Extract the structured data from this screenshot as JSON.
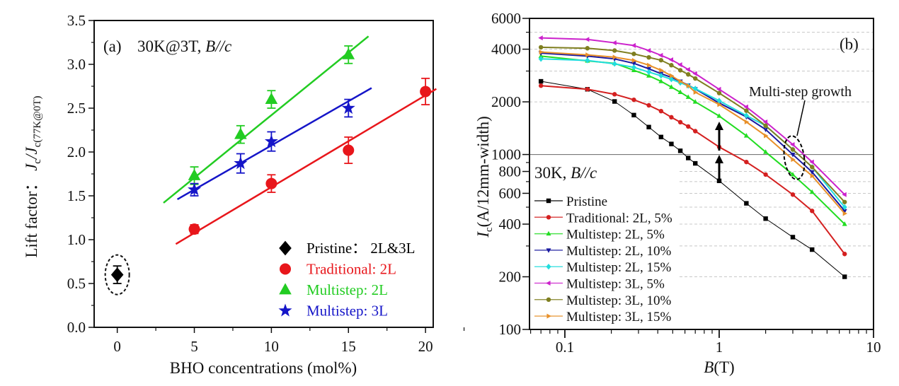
{
  "chart_data": [
    {
      "type": "scatter",
      "panel_label": "(a)",
      "annotation": "30K@3T, ",
      "annotation_italic": "B//c",
      "xlabel": "BHO concentrations (mol%)",
      "ylabel_prefix": "Lift factor：  ",
      "ylabel_main": "J",
      "ylabel_sub1": "c",
      "ylabel_mid": "/J",
      "ylabel_sub2": "c(77K@0T)",
      "xlim": [
        -1.5,
        20.5
      ],
      "ylim": [
        0,
        3.5
      ],
      "xticks": [
        "0",
        "5",
        "10",
        "15",
        "20"
      ],
      "xtick_values": [
        0,
        5,
        10,
        15,
        20
      ],
      "yticks": [
        "0.0",
        "0.5",
        "1.0",
        "1.5",
        "2.0",
        "2.5",
        "3.0",
        "3.5"
      ],
      "ytick_values": [
        0,
        0.5,
        1.0,
        1.5,
        2.0,
        2.5,
        3.0,
        3.5
      ],
      "legend_position": "bottom-right",
      "series": [
        {
          "name": "Pristine：  2L&3L",
          "color": "#000000",
          "marker": "diamond",
          "x": [
            0
          ],
          "y": [
            0.6
          ],
          "err": [
            0.1
          ],
          "fit": null,
          "circled": true
        },
        {
          "name": "Traditional: 2L",
          "color": "#e8161b",
          "marker": "circle",
          "x": [
            5,
            10,
            15,
            20
          ],
          "y": [
            1.12,
            1.64,
            2.02,
            2.69
          ],
          "err": [
            0.05,
            0.1,
            0.15,
            0.15
          ],
          "fit": {
            "x": [
              3.8,
              20.7
            ],
            "y": [
              0.95,
              2.72
            ]
          }
        },
        {
          "name": "Multistep: 2L",
          "color": "#22cc22",
          "marker": "triangle",
          "x": [
            5,
            8,
            10,
            15
          ],
          "y": [
            1.73,
            2.2,
            2.6,
            3.11
          ],
          "err": [
            0.1,
            0.1,
            0.1,
            0.1
          ],
          "fit": {
            "x": [
              3.0,
              16.3
            ],
            "y": [
              1.42,
              3.32
            ]
          }
        },
        {
          "name": "Multistep: 3L",
          "color": "#1515c8",
          "marker": "star",
          "x": [
            5,
            8,
            10,
            15
          ],
          "y": [
            1.57,
            1.87,
            2.12,
            2.5
          ],
          "err": [
            0.07,
            0.11,
            0.11,
            0.1
          ],
          "fit": {
            "x": [
              3.9,
              16.5
            ],
            "y": [
              1.46,
              2.73
            ]
          }
        }
      ]
    },
    {
      "type": "line",
      "panel_label": "(b)",
      "annotation": "30K, ",
      "annotation_italic": "B//c",
      "callout": "Multi-step growth",
      "xlabel_italic": "B",
      "xlabel_rest": "(T)",
      "ylabel_main": "I",
      "ylabel_sub": "c",
      "ylabel_rest": "(A/12mm-width)",
      "xscale": "log",
      "yscale": "log",
      "xlim": [
        0.059,
        10
      ],
      "ylim": [
        100,
        6000
      ],
      "xticks": [
        "0.1",
        "1",
        "10"
      ],
      "xtick_values": [
        0.1,
        1,
        10
      ],
      "yticks": [
        "100",
        "200",
        "400",
        "600",
        "800",
        "1000",
        "2000",
        "4000",
        "6000"
      ],
      "ytick_values": [
        100,
        200,
        400,
        600,
        800,
        1000,
        2000,
        4000,
        6000
      ],
      "grid": "horizontal dashed",
      "reference_line": 1000,
      "legend_position": "bottom-left",
      "x": [
        0.07,
        0.14,
        0.21,
        0.28,
        0.35,
        0.42,
        0.49,
        0.56,
        0.63,
        0.7,
        1,
        1.5,
        2,
        3,
        4,
        6.5
      ],
      "series": [
        {
          "name": "Pristine",
          "color": "#000000",
          "marker": "square",
          "values": [
            2620,
            2360,
            2010,
            1680,
            1435,
            1259,
            1149,
            1050,
            955,
            890,
            707,
            526,
            430,
            337,
            286,
            200
          ]
        },
        {
          "name": "Traditional: 2L, 5%",
          "color": "#d42020",
          "marker": "circle",
          "values": [
            2474,
            2360,
            2210,
            2055,
            1910,
            1770,
            1633,
            1530,
            1446,
            1360,
            1104,
            906,
            768,
            590,
            476,
            270
          ]
        },
        {
          "name": "Multistep: 2L, 5%",
          "color": "#22dd22",
          "marker": "triangle-up",
          "values": [
            3650,
            3430,
            3320,
            3030,
            2820,
            2620,
            2430,
            2270,
            2130,
            2000,
            1660,
            1280,
            1033,
            768,
            610,
            400
          ]
        },
        {
          "name": "Multistep: 2L, 10%",
          "color": "#1a1aa0",
          "marker": "triangle-down",
          "values": [
            3800,
            3650,
            3520,
            3320,
            3090,
            2900,
            2760,
            2620,
            2490,
            2370,
            1970,
            1640,
            1390,
            1000,
            794,
            476
          ]
        },
        {
          "name": "Multistep: 2L, 15%",
          "color": "#22dddd",
          "marker": "diamond",
          "values": [
            3520,
            3450,
            3300,
            3150,
            2960,
            2820,
            2690,
            2570,
            2470,
            2380,
            2030,
            1670,
            1460,
            1068,
            848,
            500
          ]
        },
        {
          "name": "Multistep: 3L, 5%",
          "color": "#cc22cc",
          "marker": "triangle-left",
          "values": [
            4640,
            4550,
            4350,
            4200,
            3930,
            3690,
            3480,
            3260,
            3060,
            2900,
            2360,
            1870,
            1535,
            1140,
            906,
            590
          ]
        },
        {
          "name": "Multistep: 3L, 10%",
          "color": "#7f7f20",
          "marker": "hexagon",
          "values": [
            4100,
            4050,
            3930,
            3760,
            3590,
            3460,
            3240,
            3030,
            2870,
            2720,
            2245,
            1780,
            1460,
            1068,
            848,
            535
          ]
        },
        {
          "name": "Multistep: 3L, 15%",
          "color": "#e8902a",
          "marker": "triangle-right",
          "values": [
            3850,
            3710,
            3600,
            3450,
            3240,
            3030,
            2820,
            2620,
            2470,
            2270,
            1930,
            1535,
            1280,
            936,
            755,
            460
          ]
        }
      ]
    }
  ]
}
